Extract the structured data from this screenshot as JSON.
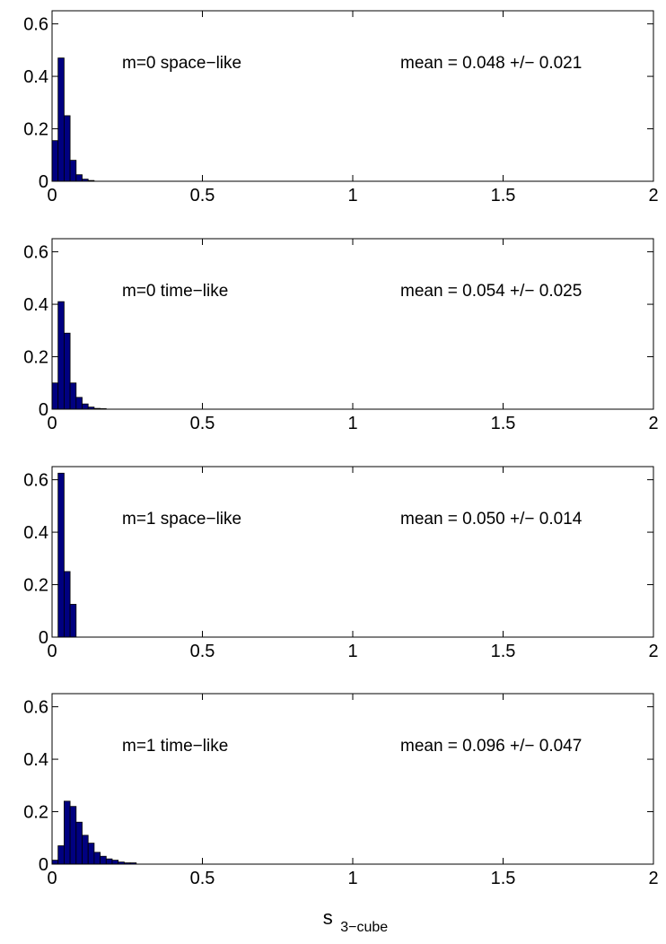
{
  "chart_data": [
    {
      "type": "bar",
      "panel": "m0-space",
      "label": "m=0 space−like",
      "stat": "mean = 0.048 +/− 0.021",
      "xlim": [
        0,
        2
      ],
      "ylim": [
        0,
        0.65
      ],
      "xticks": [
        "0",
        "0.5",
        "1",
        "1.5",
        "2"
      ],
      "yticks": [
        "0",
        "0.2",
        "0.4",
        "0.6"
      ],
      "bin_width": 0.02,
      "x": [
        0.01,
        0.03,
        0.05,
        0.07,
        0.09,
        0.11,
        0.13
      ],
      "values": [
        0.155,
        0.47,
        0.25,
        0.08,
        0.025,
        0.008,
        0.003
      ],
      "color": "#000080"
    },
    {
      "type": "bar",
      "panel": "m0-time",
      "label": "m=0 time−like",
      "stat": "mean = 0.054 +/− 0.025",
      "xlim": [
        0,
        2
      ],
      "ylim": [
        0,
        0.65
      ],
      "xticks": [
        "0",
        "0.5",
        "1",
        "1.5",
        "2"
      ],
      "yticks": [
        "0",
        "0.2",
        "0.4",
        "0.6"
      ],
      "bin_width": 0.02,
      "x": [
        0.01,
        0.03,
        0.05,
        0.07,
        0.09,
        0.11,
        0.13,
        0.15,
        0.17
      ],
      "values": [
        0.1,
        0.41,
        0.29,
        0.1,
        0.045,
        0.02,
        0.008,
        0.003,
        0.002
      ],
      "color": "#000080"
    },
    {
      "type": "bar",
      "panel": "m1-space",
      "label": "m=1 space−like",
      "stat": "mean = 0.050 +/− 0.014",
      "xlim": [
        0,
        2
      ],
      "ylim": [
        0,
        0.65
      ],
      "xticks": [
        "0",
        "0.5",
        "1",
        "1.5",
        "2"
      ],
      "yticks": [
        "0",
        "0.2",
        "0.4",
        "0.6"
      ],
      "bin_width": 0.02,
      "x": [
        0.03,
        0.05,
        0.07
      ],
      "values": [
        0.625,
        0.25,
        0.125
      ],
      "color": "#000080"
    },
    {
      "type": "bar",
      "panel": "m1-time",
      "label": "m=1 time−like",
      "stat": "mean = 0.096 +/− 0.047",
      "xlim": [
        0,
        2
      ],
      "ylim": [
        0,
        0.65
      ],
      "xticks": [
        "0",
        "0.5",
        "1",
        "1.5",
        "2"
      ],
      "yticks": [
        "0",
        "0.2",
        "0.4",
        "0.6"
      ],
      "bin_width": 0.02,
      "x": [
        0.01,
        0.03,
        0.05,
        0.07,
        0.09,
        0.11,
        0.13,
        0.15,
        0.17,
        0.19,
        0.21,
        0.23,
        0.25,
        0.27
      ],
      "values": [
        0.015,
        0.07,
        0.24,
        0.22,
        0.16,
        0.11,
        0.08,
        0.045,
        0.03,
        0.02,
        0.015,
        0.008,
        0.005,
        0.005
      ],
      "color": "#000080"
    }
  ],
  "xlabel": {
    "main": "s",
    "sub": "3−cube"
  }
}
